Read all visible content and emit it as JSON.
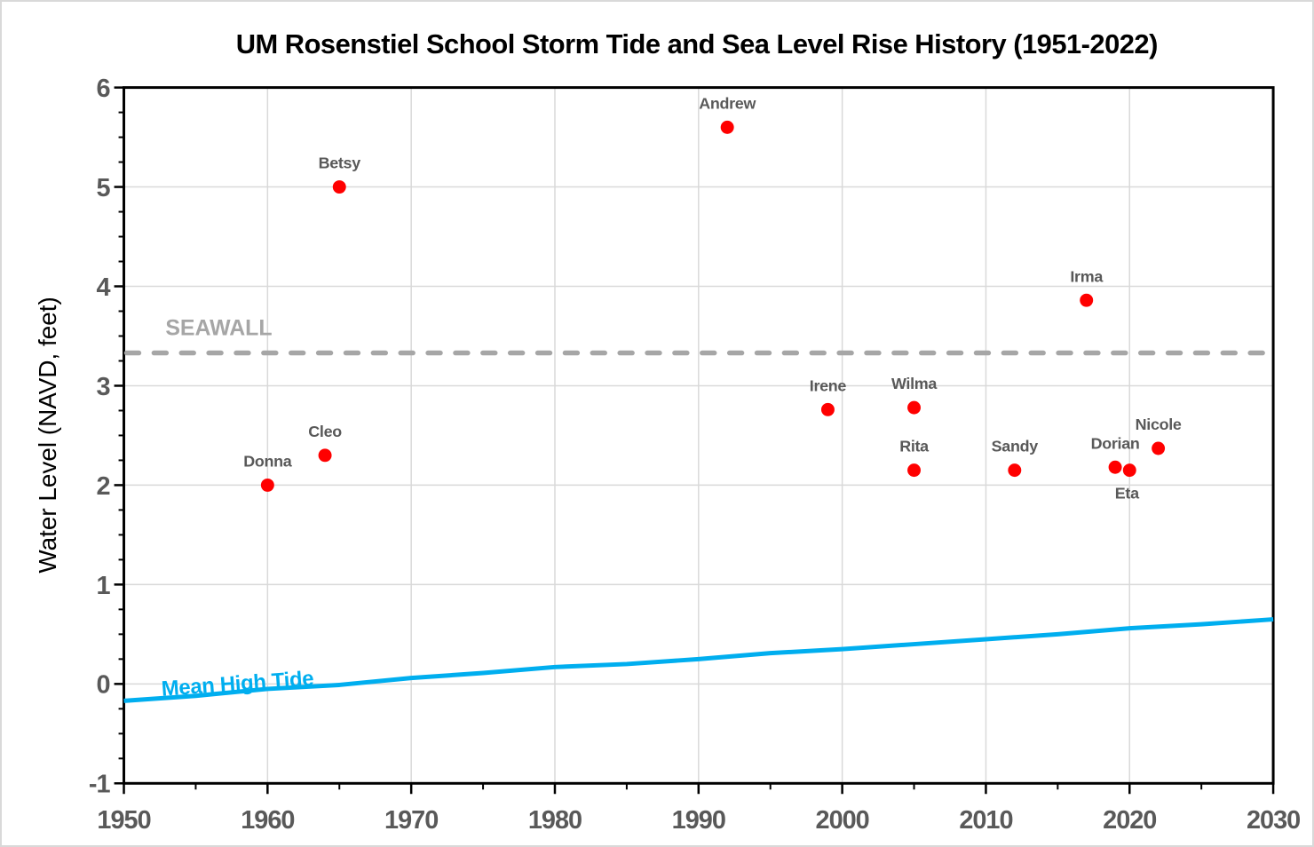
{
  "chart_data": {
    "type": "scatter",
    "title": "UM Rosenstiel School Storm Tide and Sea Level Rise History (1951-2022)",
    "xlabel": "",
    "ylabel": "Water Level (NAVD, feet)",
    "xlim": [
      1950,
      2030
    ],
    "ylim": [
      -1,
      6
    ],
    "x_tick_labels": [
      "1950",
      "1960",
      "1970",
      "1980",
      "1990",
      "2000",
      "2010",
      "2020",
      "2030"
    ],
    "y_tick_labels": [
      "-1",
      "0",
      "1",
      "2",
      "3",
      "4",
      "5",
      "6"
    ],
    "x_minor_tick_interval": 5,
    "y_minor_tick_interval": 0.25,
    "grid": "major",
    "legend_position": "none",
    "storm_points": [
      {
        "name": "Donna",
        "year": 1960,
        "level": 2.0,
        "label_pos": "above"
      },
      {
        "name": "Cleo",
        "year": 1964,
        "level": 2.3,
        "label_pos": "above"
      },
      {
        "name": "Betsy",
        "year": 1965,
        "level": 5.0,
        "label_pos": "above"
      },
      {
        "name": "Andrew",
        "year": 1992,
        "level": 5.6,
        "label_pos": "above"
      },
      {
        "name": "Irene",
        "year": 1999,
        "level": 2.76,
        "label_pos": "above"
      },
      {
        "name": "Rita",
        "year": 2005,
        "level": 2.15,
        "label_pos": "above"
      },
      {
        "name": "Wilma",
        "year": 2005,
        "level": 2.78,
        "label_pos": "above"
      },
      {
        "name": "Sandy",
        "year": 2012,
        "level": 2.15,
        "label_pos": "above"
      },
      {
        "name": "Irma",
        "year": 2017,
        "level": 3.86,
        "label_pos": "above"
      },
      {
        "name": "Dorian",
        "year": 2019,
        "level": 2.18,
        "label_pos": "above"
      },
      {
        "name": "Eta",
        "year": 2020,
        "level": 2.15,
        "label_pos": "below"
      },
      {
        "name": "Nicole",
        "year": 2022,
        "level": 2.37,
        "label_pos": "above"
      }
    ],
    "seawall": {
      "label": "SEAWALL",
      "level": 3.33
    },
    "mean_high_tide": {
      "label": "Mean High Tide",
      "series": [
        {
          "year": 1950,
          "level": -0.17
        },
        {
          "year": 1955,
          "level": -0.12
        },
        {
          "year": 1960,
          "level": -0.05
        },
        {
          "year": 1965,
          "level": -0.01
        },
        {
          "year": 1970,
          "level": 0.06
        },
        {
          "year": 1975,
          "level": 0.11
        },
        {
          "year": 1980,
          "level": 0.17
        },
        {
          "year": 1985,
          "level": 0.2
        },
        {
          "year": 1990,
          "level": 0.25
        },
        {
          "year": 1995,
          "level": 0.31
        },
        {
          "year": 2000,
          "level": 0.35
        },
        {
          "year": 2005,
          "level": 0.4
        },
        {
          "year": 2010,
          "level": 0.45
        },
        {
          "year": 2015,
          "level": 0.5
        },
        {
          "year": 2020,
          "level": 0.56
        },
        {
          "year": 2025,
          "level": 0.6
        },
        {
          "year": 2030,
          "level": 0.65
        }
      ]
    },
    "colors": {
      "storm_point": "#FF0000",
      "storm_label": "#595959",
      "seawall": "#A6A6A6",
      "tide": "#00AEEF",
      "grid": "#D9D9D9",
      "axis": "#000000",
      "tick_label": "#595959",
      "title": "#000000"
    }
  }
}
